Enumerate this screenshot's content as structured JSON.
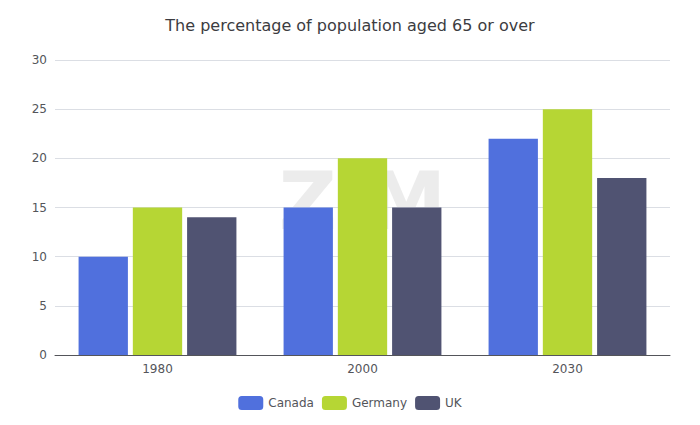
{
  "chart_data": {
    "type": "bar",
    "title": "The percentage of population aged 65 or over",
    "categories": [
      "1980",
      "2000",
      "2030"
    ],
    "series": [
      {
        "name": "Canada",
        "values": [
          10,
          15,
          22
        ]
      },
      {
        "name": "Germany",
        "values": [
          15,
          20,
          25
        ]
      },
      {
        "name": "UK",
        "values": [
          14,
          15,
          18
        ]
      }
    ],
    "ylim": [
      0,
      30
    ],
    "yticks": [
      0,
      5,
      10,
      15,
      20,
      25,
      30
    ],
    "grid": true,
    "legend": "bottom",
    "annotations": [
      "ZIM"
    ]
  }
}
